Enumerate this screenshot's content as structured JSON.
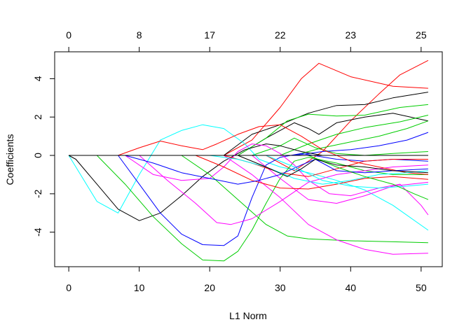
{
  "chart_data": {
    "type": "line",
    "title": "",
    "xlabel": "L1 Norm",
    "ylabel": "Coefficients",
    "xlim": [
      -2,
      53
    ],
    "ylim": [
      -5.8,
      5.4
    ],
    "grid": false,
    "legend": "none",
    "x_ticks": [
      0,
      10,
      20,
      30,
      40,
      50
    ],
    "y_ticks": [
      -4,
      -2,
      0,
      2,
      4
    ],
    "top_axis": {
      "ticks": [
        0,
        10,
        20,
        30,
        40,
        50
      ],
      "labels": [
        "0",
        "8",
        "17",
        "22",
        "23",
        "25"
      ]
    },
    "series": [
      {
        "color": "#ff0000",
        "points": [
          [
            0,
            0
          ],
          [
            22,
            0
          ],
          [
            26,
            0.8
          ],
          [
            30,
            2.5
          ],
          [
            33,
            4
          ],
          [
            35.5,
            4.8
          ],
          [
            40,
            4.1
          ],
          [
            46,
            3.6
          ],
          [
            51,
            3.5
          ]
        ]
      },
      {
        "color": "#ff0000",
        "points": [
          [
            0,
            0
          ],
          [
            28,
            0
          ],
          [
            32,
            -0.8
          ],
          [
            36,
            0.2
          ],
          [
            40,
            1.8
          ],
          [
            44,
            3.2
          ],
          [
            47,
            4.2
          ],
          [
            51,
            4.95
          ]
        ]
      },
      {
        "color": "#000000",
        "points": [
          [
            0,
            0
          ],
          [
            22,
            0
          ],
          [
            26,
            1.1
          ],
          [
            30,
            1.6
          ],
          [
            34,
            2.2
          ],
          [
            38,
            2.6
          ],
          [
            42,
            2.65
          ],
          [
            46,
            3.0
          ],
          [
            51,
            3.3
          ]
        ]
      },
      {
        "color": "#000000",
        "points": [
          [
            0,
            0
          ],
          [
            24,
            0
          ],
          [
            28,
            0.9
          ],
          [
            32,
            1.7
          ],
          [
            34,
            1.4
          ],
          [
            35.5,
            1.1
          ],
          [
            38,
            1.7
          ],
          [
            42,
            2.0
          ],
          [
            46,
            2.2
          ],
          [
            51,
            1.8
          ]
        ]
      },
      {
        "color": "#00cd00",
        "points": [
          [
            0,
            0
          ],
          [
            24,
            0
          ],
          [
            28,
            0.9
          ],
          [
            31,
            1.8
          ],
          [
            34,
            2.15
          ],
          [
            38,
            2.05
          ],
          [
            42,
            2.1
          ],
          [
            47,
            2.5
          ],
          [
            51,
            2.65
          ]
        ]
      },
      {
        "color": "#00cd00",
        "points": [
          [
            0,
            0
          ],
          [
            30,
            0
          ],
          [
            34,
            0.6
          ],
          [
            38,
            1.1
          ],
          [
            42,
            1.45
          ],
          [
            47,
            1.75
          ],
          [
            51,
            2.1
          ]
        ]
      },
      {
        "color": "#00cd00",
        "points": [
          [
            0,
            0
          ],
          [
            32,
            0
          ],
          [
            36,
            0.4
          ],
          [
            40,
            0.7
          ],
          [
            44,
            1.0
          ],
          [
            48,
            1.4
          ],
          [
            51,
            1.8
          ]
        ]
      },
      {
        "color": "#00cd00",
        "points": [
          [
            0,
            0
          ],
          [
            26,
            0
          ],
          [
            30,
            0.5
          ],
          [
            32,
            0.9
          ],
          [
            35,
            0.4
          ],
          [
            38,
            0.1
          ],
          [
            42,
            0
          ],
          [
            46,
            0.1
          ],
          [
            51,
            0.2
          ]
        ]
      },
      {
        "color": "#0000ff",
        "points": [
          [
            0,
            0
          ],
          [
            32,
            0
          ],
          [
            36,
            0.2
          ],
          [
            40,
            0.3
          ],
          [
            44,
            0.5
          ],
          [
            48,
            0.8
          ],
          [
            51,
            1.2
          ]
        ]
      },
      {
        "color": "#00ffff",
        "points": [
          [
            0,
            0
          ],
          [
            1,
            -0.6
          ],
          [
            4,
            -2.4
          ],
          [
            7,
            -3.0
          ],
          [
            10,
            -1.0
          ],
          [
            13,
            0.8
          ],
          [
            16,
            1.3
          ],
          [
            19,
            1.6
          ],
          [
            22,
            1.4
          ],
          [
            25,
            0.6
          ],
          [
            27,
            -0.2
          ],
          [
            30,
            -0.6
          ],
          [
            34,
            -0.9
          ],
          [
            38,
            -1.3
          ],
          [
            42,
            -1.8
          ],
          [
            46,
            -2.6
          ],
          [
            51,
            -3.9
          ]
        ]
      },
      {
        "color": "#000000",
        "points": [
          [
            0,
            0
          ],
          [
            1,
            -0.2
          ],
          [
            4,
            -1.5
          ],
          [
            7,
            -2.8
          ],
          [
            10,
            -3.4
          ],
          [
            13,
            -3.0
          ],
          [
            16,
            -2.1
          ],
          [
            19,
            -1.1
          ],
          [
            22,
            -0.3
          ],
          [
            25,
            0.3
          ],
          [
            28,
            0.6
          ],
          [
            30,
            0.5
          ],
          [
            33,
            0.2
          ],
          [
            36,
            0
          ],
          [
            51,
            0
          ]
        ]
      },
      {
        "color": "#0000ff",
        "points": [
          [
            0,
            0
          ],
          [
            7,
            0
          ],
          [
            10,
            -1.5
          ],
          [
            13,
            -3.0
          ],
          [
            16,
            -4.1
          ],
          [
            19,
            -4.65
          ],
          [
            22,
            -4.7
          ],
          [
            24,
            -4.2
          ],
          [
            26,
            -2.2
          ],
          [
            28,
            -0.5
          ],
          [
            30,
            -0.1
          ],
          [
            33,
            0.1
          ],
          [
            38,
            -0.2
          ],
          [
            42,
            -0.3
          ],
          [
            46,
            -0.2
          ],
          [
            51,
            -0.3
          ]
        ]
      },
      {
        "color": "#00cd00",
        "points": [
          [
            0,
            0
          ],
          [
            4,
            0
          ],
          [
            8,
            -1.5
          ],
          [
            12,
            -3.2
          ],
          [
            16,
            -4.6
          ],
          [
            19,
            -5.45
          ],
          [
            22,
            -5.5
          ],
          [
            24,
            -5.0
          ],
          [
            26,
            -3.9
          ],
          [
            28,
            -2.5
          ],
          [
            30,
            -1.2
          ],
          [
            32,
            -0.3
          ],
          [
            34,
            -0.1
          ],
          [
            38,
            -0.4
          ],
          [
            42,
            -0.8
          ],
          [
            46,
            -1.0
          ],
          [
            51,
            -1.0
          ]
        ]
      },
      {
        "color": "#00cd00",
        "points": [
          [
            0,
            0
          ],
          [
            16,
            0
          ],
          [
            20,
            -1.0
          ],
          [
            24,
            -2.3
          ],
          [
            28,
            -3.6
          ],
          [
            31,
            -4.2
          ],
          [
            34,
            -4.35
          ],
          [
            40,
            -4.45
          ],
          [
            46,
            -4.5
          ],
          [
            51,
            -4.55
          ]
        ]
      },
      {
        "color": "#ff00ff",
        "points": [
          [
            0,
            0
          ],
          [
            10,
            0
          ],
          [
            14,
            -1.3
          ],
          [
            18,
            -2.5
          ],
          [
            21,
            -3.5
          ],
          [
            23,
            -3.6
          ],
          [
            26,
            -3.3
          ],
          [
            30,
            -2.4
          ],
          [
            34,
            -1.4
          ],
          [
            38,
            -1.0
          ],
          [
            42,
            -0.8
          ],
          [
            46,
            -0.6
          ],
          [
            51,
            -0.5
          ]
        ]
      },
      {
        "color": "#ff00ff",
        "points": [
          [
            0,
            0
          ],
          [
            22,
            0
          ],
          [
            26,
            -1.0
          ],
          [
            30,
            -2.2
          ],
          [
            34,
            -3.6
          ],
          [
            38,
            -4.4
          ],
          [
            42,
            -4.9
          ],
          [
            46,
            -5.15
          ],
          [
            51,
            -5.1
          ]
        ]
      },
      {
        "color": "#ff00ff",
        "points": [
          [
            0,
            0
          ],
          [
            8,
            0
          ],
          [
            12,
            -1.0
          ],
          [
            16,
            -1.3
          ],
          [
            20,
            -1.2
          ],
          [
            22,
            -0.6
          ],
          [
            24,
            0.2
          ],
          [
            26,
            0.6
          ],
          [
            28,
            0.5
          ],
          [
            30,
            0.1
          ],
          [
            32,
            -0.5
          ],
          [
            34,
            -1.3
          ],
          [
            37,
            -2.0
          ],
          [
            40,
            -2.1
          ],
          [
            44,
            -1.7
          ],
          [
            47,
            -1.5
          ],
          [
            50,
            -2.6
          ],
          [
            51,
            -3.1
          ]
        ]
      },
      {
        "color": "#ff00ff",
        "points": [
          [
            0,
            0
          ],
          [
            26,
            0
          ],
          [
            30,
            -1.2
          ],
          [
            34,
            -2.3
          ],
          [
            38,
            -2.5
          ],
          [
            42,
            -2.1
          ],
          [
            46,
            -1.6
          ],
          [
            51,
            -1.4
          ]
        ]
      },
      {
        "color": "#ff0000",
        "points": [
          [
            0,
            0
          ],
          [
            7,
            0
          ],
          [
            10,
            0.4
          ],
          [
            13,
            0.75
          ],
          [
            16,
            0.5
          ],
          [
            19,
            0.3
          ],
          [
            21,
            0.6
          ],
          [
            24,
            1.1
          ],
          [
            27,
            1.5
          ],
          [
            30,
            1.6
          ],
          [
            33,
            1.0
          ],
          [
            36,
            0.3
          ],
          [
            40,
            -0.3
          ],
          [
            44,
            -0.6
          ],
          [
            48,
            -0.9
          ],
          [
            51,
            -1.0
          ]
        ]
      },
      {
        "color": "#ff0000",
        "points": [
          [
            0,
            0
          ],
          [
            18,
            0
          ],
          [
            22,
            -0.6
          ],
          [
            26,
            -1.3
          ],
          [
            30,
            -1.7
          ],
          [
            34,
            -1.75
          ],
          [
            38,
            -1.5
          ],
          [
            42,
            -1.2
          ],
          [
            46,
            -1.1
          ],
          [
            51,
            -1.25
          ]
        ]
      },
      {
        "color": "#ff0000",
        "points": [
          [
            0,
            0
          ],
          [
            22,
            0
          ],
          [
            26,
            -0.4
          ],
          [
            30,
            -0.9
          ],
          [
            34,
            -1.1
          ],
          [
            38,
            -0.7
          ],
          [
            42,
            -0.3
          ],
          [
            46,
            -0.2
          ],
          [
            51,
            -0.2
          ]
        ]
      },
      {
        "color": "#0000ff",
        "points": [
          [
            0,
            0
          ],
          [
            8,
            0
          ],
          [
            12,
            -0.4
          ],
          [
            16,
            -0.9
          ],
          [
            20,
            -1.2
          ],
          [
            24,
            -1.5
          ],
          [
            27,
            -1.3
          ],
          [
            30,
            -1.0
          ],
          [
            33,
            -0.5
          ],
          [
            35,
            -0.2
          ],
          [
            38,
            -0.8
          ],
          [
            42,
            -0.9
          ],
          [
            46,
            -0.8
          ],
          [
            51,
            -0.7
          ]
        ]
      },
      {
        "color": "#00ffff",
        "points": [
          [
            0,
            0
          ],
          [
            28,
            0
          ],
          [
            32,
            -0.6
          ],
          [
            36,
            -1.3
          ],
          [
            40,
            -1.6
          ],
          [
            44,
            -1.7
          ],
          [
            48,
            -1.6
          ],
          [
            51,
            -1.5
          ]
        ]
      },
      {
        "color": "#00ffff",
        "points": [
          [
            0,
            0
          ],
          [
            20,
            0
          ],
          [
            24,
            -0.2
          ],
          [
            28,
            -0.6
          ],
          [
            32,
            -1.2
          ],
          [
            36,
            -1.5
          ],
          [
            40,
            -1.3
          ],
          [
            44,
            -1.0
          ],
          [
            48,
            -0.9
          ],
          [
            51,
            -0.8
          ]
        ]
      },
      {
        "color": "#00cd00",
        "points": [
          [
            0,
            0
          ],
          [
            34,
            0
          ],
          [
            38,
            -0.6
          ],
          [
            42,
            -1.1
          ],
          [
            46,
            -1.5
          ],
          [
            49,
            -2.0
          ],
          [
            51,
            -2.3
          ]
        ]
      },
      {
        "color": "#000000",
        "points": [
          [
            0,
            0
          ],
          [
            24,
            0
          ],
          [
            28,
            -0.6
          ],
          [
            31,
            -1.1
          ],
          [
            33,
            -0.7
          ],
          [
            35,
            -0.2
          ],
          [
            38,
            -0.5
          ],
          [
            42,
            -0.6
          ],
          [
            46,
            -0.8
          ],
          [
            51,
            -0.9
          ]
        ]
      },
      {
        "color": "#000000",
        "points": [
          [
            0,
            0
          ],
          [
            51,
            0
          ]
        ]
      }
    ]
  }
}
